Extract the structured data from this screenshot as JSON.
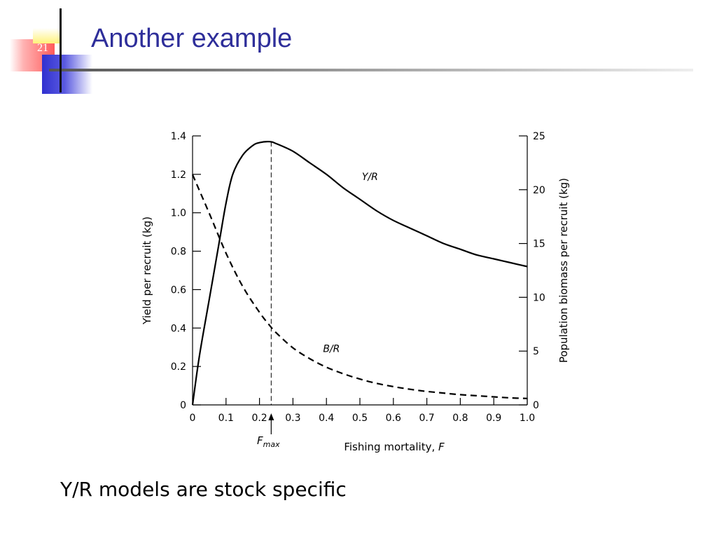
{
  "slide": {
    "number": "21",
    "title": "Another example",
    "caption": "Y/R models are stock specific"
  },
  "colors": {
    "title": "#2e2e9a",
    "accent_blue": "#3030d0",
    "accent_pink": "#ff5a5a",
    "accent_yellow": "#fff27a"
  },
  "chart_data": {
    "type": "line",
    "title": "",
    "xlabel": "Fishing mortality, F",
    "ylabel": "Yield per recruit (kg)",
    "y2label": "Population biomass per recruit (kg)",
    "xlim": [
      0,
      1.0
    ],
    "ylim": [
      0,
      1.4
    ],
    "y2lim": [
      0,
      25
    ],
    "x_ticks": [
      "0",
      "0.1",
      "0.2",
      "0.3",
      "0.4",
      "0.5",
      "0.6",
      "0.7",
      "0.8",
      "0.9",
      "1.0"
    ],
    "y_ticks": [
      "0",
      "0.2",
      "0.4",
      "0.6",
      "0.8",
      "1.0",
      "1.2",
      "1.4"
    ],
    "y2_ticks": [
      "0",
      "5",
      "10",
      "15",
      "20",
      "25"
    ],
    "grid": false,
    "legend": "none",
    "series": [
      {
        "name": "Y/R",
        "axis": "left",
        "style": "solid",
        "x": [
          0,
          0.02,
          0.05,
          0.08,
          0.1,
          0.12,
          0.15,
          0.18,
          0.2,
          0.23,
          0.25,
          0.3,
          0.35,
          0.4,
          0.45,
          0.5,
          0.55,
          0.6,
          0.65,
          0.7,
          0.75,
          0.8,
          0.85,
          0.9,
          0.95,
          1.0
        ],
        "values": [
          0,
          0.25,
          0.55,
          0.85,
          1.05,
          1.2,
          1.3,
          1.35,
          1.365,
          1.37,
          1.36,
          1.32,
          1.26,
          1.2,
          1.13,
          1.07,
          1.01,
          0.96,
          0.92,
          0.88,
          0.84,
          0.81,
          0.78,
          0.76,
          0.74,
          0.72
        ]
      },
      {
        "name": "B/R",
        "axis": "right",
        "style": "dashed",
        "x": [
          0,
          0.05,
          0.1,
          0.15,
          0.2,
          0.23,
          0.25,
          0.3,
          0.35,
          0.4,
          0.45,
          0.5,
          0.55,
          0.6,
          0.65,
          0.7,
          0.75,
          0.8,
          0.85,
          0.9,
          0.95,
          1.0
        ],
        "values": [
          21.4,
          17.8,
          14.1,
          11.0,
          8.6,
          7.4,
          6.7,
          5.3,
          4.3,
          3.5,
          2.9,
          2.4,
          2.0,
          1.7,
          1.45,
          1.25,
          1.1,
          0.95,
          0.85,
          0.75,
          0.65,
          0.6
        ]
      }
    ],
    "annotations": {
      "yr_label": "Y/R",
      "br_label": "B/R",
      "fmax_main": "F",
      "fmax_sub": "max",
      "fmax_x": 0.235
    }
  }
}
